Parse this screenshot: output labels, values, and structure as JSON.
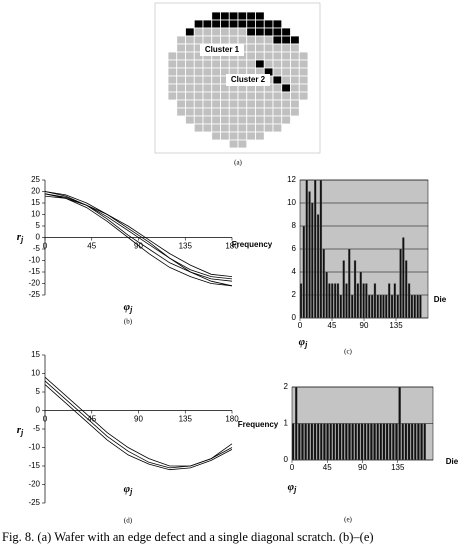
{
  "wafer": {
    "labels": [
      "Cluster 1",
      "Cluster 2"
    ],
    "caption": "(a)",
    "rows": [
      [
        0,
        0,
        0,
        0,
        0,
        2,
        2,
        2,
        2,
        2,
        2,
        0,
        0,
        0,
        0,
        0
      ],
      [
        0,
        0,
        0,
        2,
        2,
        2,
        2,
        2,
        2,
        2,
        2,
        2,
        2,
        0,
        0,
        0
      ],
      [
        0,
        0,
        2,
        1,
        1,
        1,
        1,
        1,
        1,
        2,
        2,
        2,
        2,
        2,
        0,
        0
      ],
      [
        0,
        1,
        1,
        1,
        1,
        1,
        1,
        1,
        1,
        1,
        1,
        1,
        2,
        2,
        2,
        0
      ],
      [
        0,
        1,
        1,
        1,
        1,
        1,
        1,
        1,
        1,
        1,
        1,
        1,
        1,
        1,
        1,
        0
      ],
      [
        1,
        1,
        1,
        1,
        1,
        1,
        1,
        1,
        1,
        1,
        1,
        1,
        1,
        1,
        1,
        1
      ],
      [
        1,
        1,
        1,
        1,
        1,
        1,
        1,
        1,
        1,
        1,
        2,
        1,
        1,
        1,
        1,
        1
      ],
      [
        1,
        1,
        1,
        1,
        1,
        1,
        1,
        1,
        1,
        1,
        1,
        2,
        1,
        1,
        1,
        1
      ],
      [
        1,
        1,
        1,
        1,
        1,
        1,
        1,
        1,
        1,
        1,
        1,
        1,
        2,
        1,
        1,
        1
      ],
      [
        1,
        1,
        1,
        1,
        1,
        1,
        1,
        1,
        1,
        1,
        1,
        1,
        1,
        2,
        1,
        1
      ],
      [
        1,
        1,
        1,
        1,
        1,
        1,
        1,
        1,
        1,
        1,
        1,
        1,
        1,
        1,
        1,
        1
      ],
      [
        0,
        1,
        1,
        1,
        1,
        1,
        1,
        1,
        1,
        1,
        1,
        1,
        1,
        1,
        1,
        0
      ],
      [
        0,
        1,
        1,
        1,
        1,
        1,
        1,
        1,
        1,
        1,
        1,
        1,
        1,
        1,
        1,
        0
      ],
      [
        0,
        0,
        1,
        1,
        1,
        1,
        1,
        1,
        1,
        1,
        1,
        1,
        1,
        1,
        0,
        0
      ],
      [
        0,
        0,
        0,
        1,
        1,
        1,
        1,
        1,
        1,
        1,
        1,
        1,
        1,
        0,
        0,
        0
      ],
      [
        0,
        0,
        0,
        0,
        0,
        1,
        1,
        1,
        1,
        1,
        1,
        0,
        0,
        0,
        0,
        0
      ],
      [
        0,
        0,
        0,
        0,
        0,
        0,
        0,
        1,
        1,
        0,
        0,
        0,
        0,
        0,
        0,
        0
      ]
    ]
  },
  "chart_data": [
    {
      "type": "line",
      "caption": "(b)",
      "y_label": "r",
      "y_label_subscript": "j",
      "x_label": "φ",
      "x_label_subscript": "j",
      "x": [
        0,
        20,
        40,
        60,
        80,
        100,
        120,
        140,
        160,
        180
      ],
      "xlim": [
        0,
        180
      ],
      "xticks": [
        0,
        45,
        90,
        135,
        180
      ],
      "ylim": [
        -25,
        25
      ],
      "yticks": [
        25,
        20,
        15,
        10,
        5,
        0,
        -5,
        -10,
        -15,
        -20,
        -25
      ],
      "series": [
        {
          "color": "#000000",
          "values": [
            20,
            18,
            14,
            8,
            1,
            -5,
            -11,
            -15,
            -18,
            -19
          ]
        },
        {
          "color": "#000000",
          "values": [
            19,
            17.5,
            14,
            9,
            3,
            -3,
            -9,
            -14,
            -17,
            -18
          ]
        },
        {
          "color": "#000000",
          "values": [
            18,
            17,
            14,
            10,
            5,
            -1,
            -7,
            -12,
            -16,
            -17
          ]
        },
        {
          "color": "#000000",
          "values": [
            20,
            18.5,
            15,
            10,
            4,
            -2,
            -9,
            -15,
            -19,
            -21
          ]
        },
        {
          "color": "#000000",
          "values": [
            19,
            17,
            13,
            7,
            0,
            -7,
            -13,
            -17,
            -20,
            -21
          ]
        }
      ]
    },
    {
      "type": "bar",
      "caption": "(c)",
      "y_label": "Frequency",
      "depth_label": "Die",
      "x_label": "φ",
      "x_label_subscript": "j",
      "color": "#111111",
      "background": "#c4c4c4",
      "x": [
        0,
        4,
        8,
        12,
        16,
        20,
        24,
        28,
        32,
        36,
        40,
        44,
        48,
        52,
        56,
        60,
        64,
        68,
        72,
        76,
        80,
        84,
        88,
        92,
        96,
        100,
        104,
        108,
        112,
        116,
        120,
        124,
        128,
        132,
        136,
        140,
        144,
        148,
        152,
        156,
        160,
        164,
        168
      ],
      "values": [
        3,
        8,
        12,
        11,
        10,
        12,
        9,
        12,
        6,
        4,
        3,
        3,
        3,
        3,
        2,
        5,
        3,
        6,
        2,
        5,
        3,
        4,
        3,
        3,
        2,
        2,
        3,
        2,
        2,
        2,
        2,
        3,
        2,
        3,
        2,
        6,
        7,
        5,
        3,
        2,
        2,
        2,
        2
      ],
      "xlim": [
        0,
        180
      ],
      "xticks": [
        0,
        45,
        90,
        135
      ],
      "ylim": [
        0,
        12
      ],
      "yticks": [
        0,
        2,
        4,
        6,
        8,
        10,
        12
      ]
    },
    {
      "type": "line",
      "caption": "(d)",
      "y_label": "r",
      "y_label_subscript": "j",
      "x_label": "φ",
      "x_label_subscript": "j",
      "x": [
        0,
        20,
        40,
        60,
        80,
        100,
        120,
        140,
        160,
        180
      ],
      "xlim": [
        0,
        180
      ],
      "xticks": [
        0,
        45,
        90,
        135,
        180
      ],
      "ylim": [
        -25,
        15
      ],
      "yticks": [
        15,
        10,
        5,
        0,
        -5,
        -10,
        -15,
        -20,
        -25
      ],
      "series": [
        {
          "color": "#000000",
          "values": [
            8,
            3,
            -2,
            -7,
            -11,
            -14,
            -15.5,
            -15,
            -13,
            -10
          ]
        },
        {
          "color": "#000000",
          "values": [
            9,
            4,
            -1,
            -6,
            -10,
            -13,
            -15,
            -15,
            -13,
            -9
          ]
        },
        {
          "color": "#000000",
          "values": [
            7,
            2,
            -3,
            -8,
            -12,
            -14.5,
            -16,
            -15.5,
            -13.5,
            -10.5
          ]
        }
      ]
    },
    {
      "type": "bar",
      "caption": "(e)",
      "y_label": "Frequency",
      "depth_label": "Die",
      "x_label": "φ",
      "x_label_subscript": "j",
      "color": "#111111",
      "background": "#c4c4c4",
      "x": [
        0,
        4,
        8,
        12,
        16,
        20,
        24,
        28,
        32,
        36,
        40,
        44,
        48,
        52,
        56,
        60,
        64,
        68,
        72,
        76,
        80,
        84,
        88,
        92,
        96,
        100,
        104,
        108,
        112,
        116,
        120,
        124,
        128,
        132,
        136,
        140,
        144,
        148,
        152,
        156,
        160,
        164,
        168
      ],
      "values": [
        1,
        2,
        1,
        1,
        1,
        1,
        1,
        1,
        1,
        1,
        1,
        1,
        1,
        1,
        1,
        1,
        1,
        1,
        1,
        1,
        1,
        1,
        1,
        1,
        1,
        1,
        1,
        1,
        1,
        1,
        1,
        1,
        1,
        1,
        2,
        1,
        1,
        1,
        1,
        1,
        1,
        1,
        1
      ],
      "xlim": [
        0,
        180
      ],
      "xticks": [
        0,
        45,
        90,
        135
      ],
      "ylim": [
        0,
        2
      ],
      "yticks": [
        0,
        1,
        2
      ]
    }
  ],
  "figure_caption": "Fig. 8.   (a) Wafer with an edge defect and a single diagonal scratch.  (b)–(e)"
}
